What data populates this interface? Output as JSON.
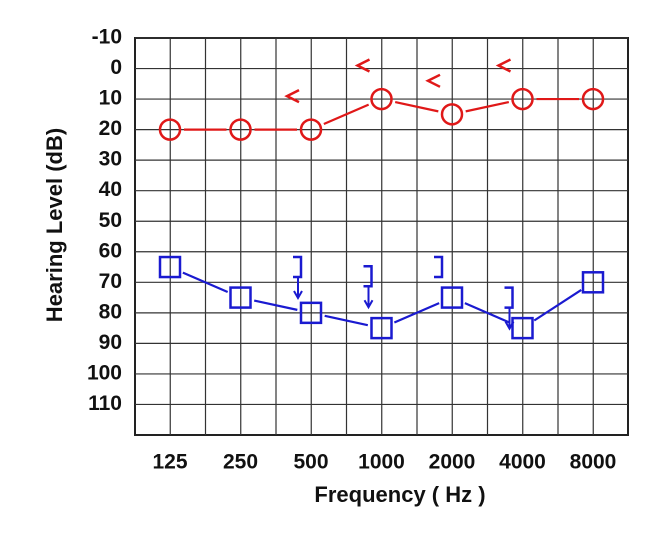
{
  "chart_data": {
    "type": "audiogram",
    "x_label": "Frequency ( Hz )",
    "y_label": "Hearing Level (dB)",
    "categories": [
      "125",
      "250",
      "500",
      "1000",
      "2000",
      "4000",
      "8000"
    ],
    "ylim": [
      -10,
      120
    ],
    "y_inverted": true,
    "yticks": [
      -10,
      0,
      10,
      20,
      30,
      40,
      50,
      60,
      70,
      80,
      90,
      100,
      110
    ],
    "grid": true,
    "series": [
      {
        "marker": "circle",
        "color": "#e01818",
        "connected": true,
        "values": [
          20,
          20,
          20,
          10,
          15,
          10,
          10
        ]
      },
      {
        "marker": "less-than",
        "color": "#e01818",
        "connected": false,
        "values": [
          null,
          null,
          10,
          0,
          5,
          0,
          null
        ]
      },
      {
        "marker": "square",
        "color": "#1a1ad0",
        "connected": true,
        "values": [
          65,
          75,
          80,
          85,
          75,
          85,
          70
        ]
      },
      {
        "marker": "bracket",
        "color": "#1a1ad0",
        "connected": false,
        "values": [
          null,
          null,
          65,
          68,
          65,
          75,
          null
        ],
        "no_response": [
          false,
          false,
          true,
          true,
          false,
          true,
          false
        ]
      }
    ]
  }
}
